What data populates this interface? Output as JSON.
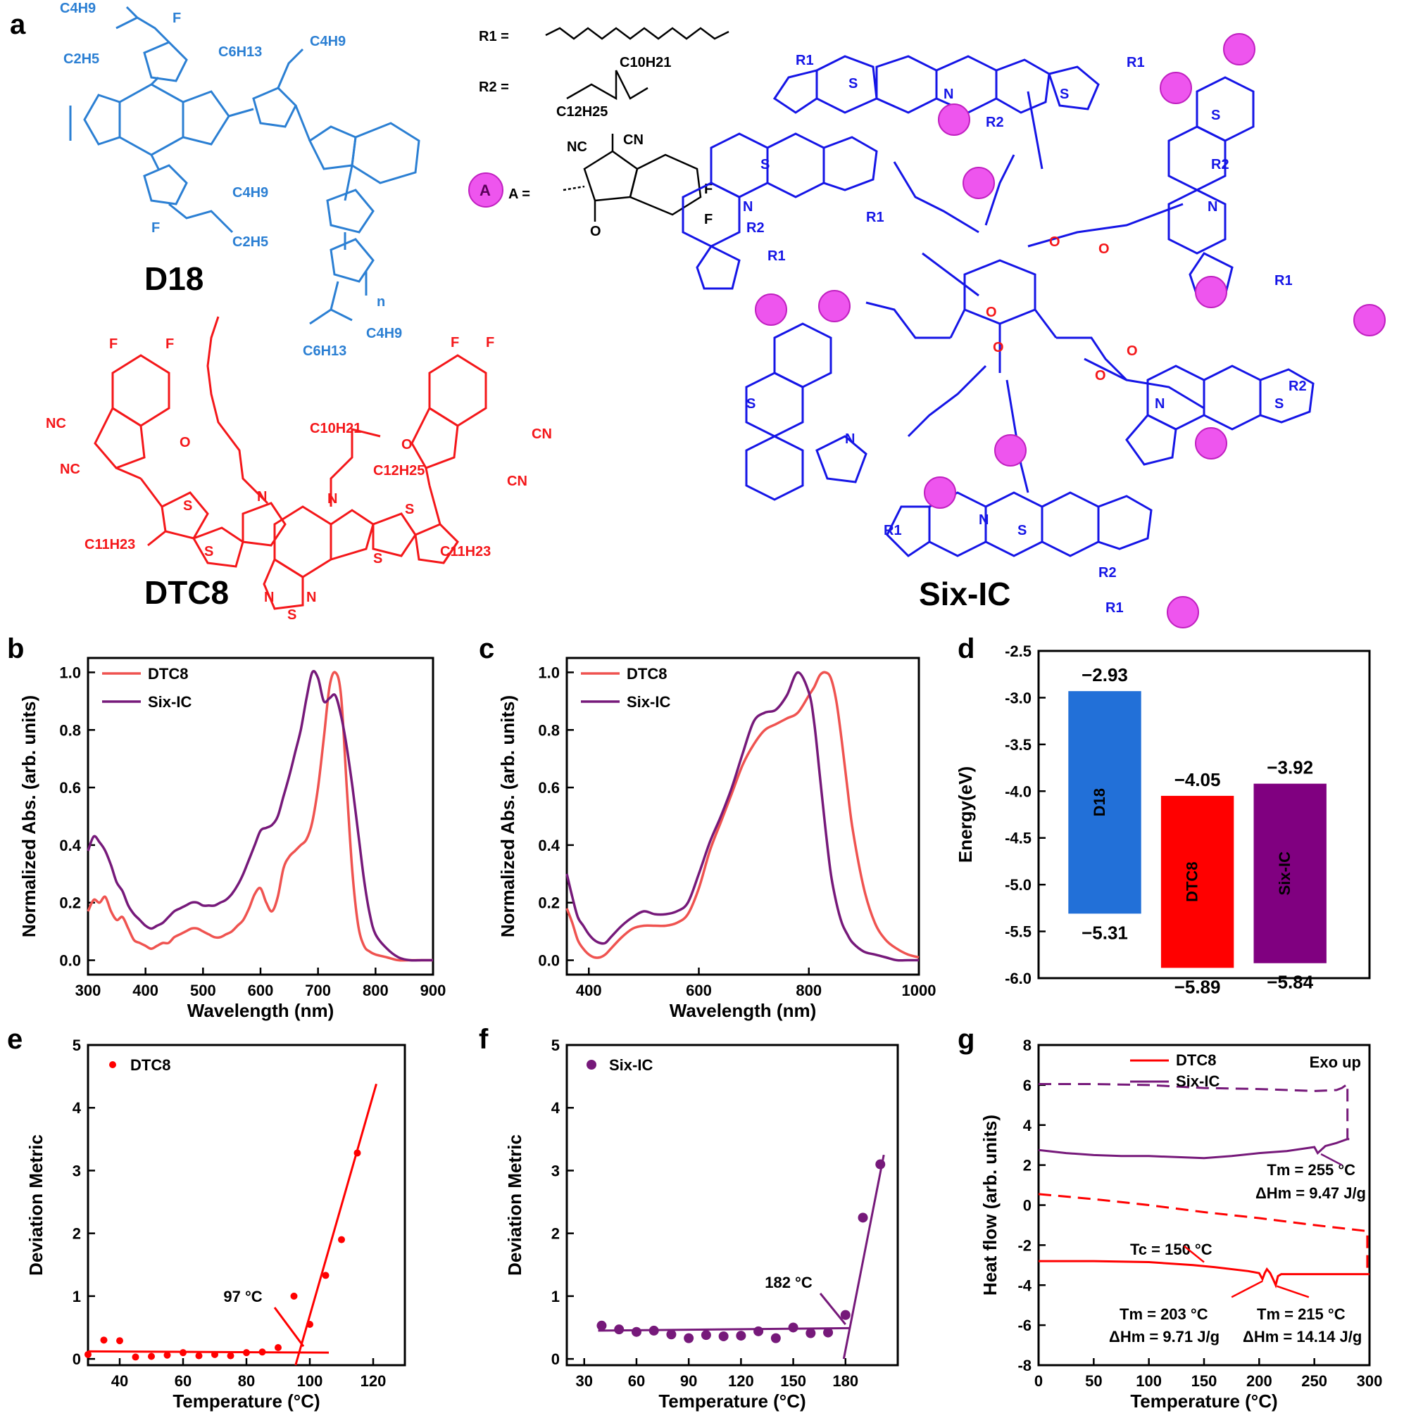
{
  "panel_labels": [
    "a",
    "b",
    "c",
    "d",
    "e",
    "f",
    "g"
  ],
  "molecules": {
    "d18": "D18",
    "dtc8": "DTC8",
    "sixic": "Six-IC",
    "r1": "R1 =",
    "r2": "R2 =",
    "a_def": "A =",
    "a_symbol": "A",
    "d18_groups": [
      "C4H9",
      "C2H5",
      "F",
      "C6H13",
      "C4H9",
      "F",
      "C4H9",
      "C2H5",
      "C6H13",
      "C4H9",
      "n"
    ],
    "dtc8_groups": [
      "F",
      "F",
      "F",
      "F",
      "NC",
      "NC",
      "CN",
      "CN",
      "O",
      "O",
      "C10H21",
      "C12H25",
      "C11H23",
      "C11H23",
      "N",
      "N",
      "S",
      "S",
      "S",
      "S",
      "N",
      "N",
      "S"
    ],
    "r2_groups": [
      "C10H21",
      "C12H25"
    ],
    "a_groups": [
      "NC",
      "CN",
      "F",
      "F",
      "O"
    ],
    "sixic_groups": [
      "R1",
      "R2",
      "S",
      "N",
      "O"
    ]
  },
  "colors": {
    "d18": "#2b7fd3",
    "dtc8": "#f4171a",
    "sixic_core": "#1515e6",
    "sixic_end": "#e040e0",
    "red_line": "#ef5350",
    "purple_line": "#76197a",
    "d18_bar": "#2270d8",
    "dtc8_bar": "#ff0000",
    "sixic_bar": "#800080"
  },
  "chart_data": [
    {
      "id": "b",
      "type": "line",
      "xlabel": "Wavelength (nm)",
      "ylabel": "Normalized Abs. (arb. units)",
      "xlim": [
        300,
        900
      ],
      "ylim": [
        -0.05,
        1.05
      ],
      "xticks": [
        300,
        400,
        500,
        600,
        700,
        800,
        900
      ],
      "yticks": [
        0.0,
        0.2,
        0.4,
        0.6,
        0.8,
        1.0
      ],
      "series": [
        {
          "name": "DTC8",
          "x": [
            300,
            310,
            320,
            330,
            340,
            350,
            360,
            370,
            380,
            390,
            400,
            410,
            420,
            430,
            440,
            450,
            460,
            470,
            480,
            490,
            500,
            510,
            520,
            530,
            540,
            550,
            560,
            570,
            580,
            590,
            600,
            610,
            620,
            630,
            640,
            650,
            660,
            670,
            680,
            690,
            700,
            710,
            720,
            730,
            740,
            750,
            760,
            770,
            780,
            790,
            800,
            820,
            840,
            860,
            880,
            900
          ],
          "y": [
            0.17,
            0.21,
            0.2,
            0.22,
            0.17,
            0.14,
            0.15,
            0.11,
            0.07,
            0.06,
            0.05,
            0.04,
            0.05,
            0.06,
            0.06,
            0.08,
            0.09,
            0.1,
            0.11,
            0.11,
            0.1,
            0.09,
            0.08,
            0.08,
            0.09,
            0.1,
            0.12,
            0.14,
            0.18,
            0.23,
            0.25,
            0.2,
            0.17,
            0.22,
            0.32,
            0.36,
            0.38,
            0.4,
            0.42,
            0.48,
            0.6,
            0.77,
            0.95,
            1.0,
            0.92,
            0.6,
            0.3,
            0.12,
            0.05,
            0.03,
            0.02,
            0.01,
            0.0,
            0.0,
            0.0,
            0.0
          ]
        },
        {
          "name": "Six-IC",
          "x": [
            300,
            310,
            320,
            330,
            340,
            350,
            360,
            370,
            380,
            390,
            400,
            410,
            420,
            430,
            440,
            450,
            460,
            470,
            480,
            490,
            500,
            510,
            520,
            530,
            540,
            550,
            560,
            570,
            580,
            590,
            600,
            610,
            620,
            630,
            640,
            650,
            660,
            670,
            680,
            690,
            700,
            710,
            720,
            730,
            740,
            750,
            760,
            770,
            780,
            790,
            800,
            820,
            840,
            860,
            880,
            900
          ],
          "y": [
            0.38,
            0.43,
            0.41,
            0.38,
            0.33,
            0.27,
            0.24,
            0.19,
            0.16,
            0.14,
            0.12,
            0.11,
            0.12,
            0.13,
            0.15,
            0.17,
            0.18,
            0.19,
            0.2,
            0.2,
            0.19,
            0.19,
            0.19,
            0.2,
            0.21,
            0.23,
            0.26,
            0.3,
            0.35,
            0.4,
            0.45,
            0.46,
            0.47,
            0.5,
            0.57,
            0.64,
            0.72,
            0.8,
            0.91,
            1.0,
            0.98,
            0.9,
            0.91,
            0.92,
            0.85,
            0.74,
            0.6,
            0.44,
            0.28,
            0.16,
            0.09,
            0.04,
            0.01,
            0.0,
            0.0,
            0.0
          ]
        }
      ]
    },
    {
      "id": "c",
      "type": "line",
      "xlabel": "Wavelength (nm)",
      "ylabel": "Normalized Abs. (arb. units)",
      "xlim": [
        360,
        1000
      ],
      "ylim": [
        -0.05,
        1.05
      ],
      "xticks": [
        400,
        600,
        800,
        1000
      ],
      "yticks": [
        0.0,
        0.2,
        0.4,
        0.6,
        0.8,
        1.0
      ],
      "series": [
        {
          "name": "DTC8",
          "x": [
            360,
            370,
            380,
            390,
            400,
            410,
            420,
            430,
            440,
            460,
            480,
            500,
            520,
            540,
            560,
            580,
            600,
            620,
            640,
            660,
            680,
            700,
            720,
            740,
            760,
            780,
            800,
            810,
            820,
            830,
            840,
            850,
            860,
            870,
            880,
            900,
            920,
            940,
            960,
            980,
            1000
          ],
          "y": [
            0.18,
            0.13,
            0.07,
            0.04,
            0.02,
            0.01,
            0.01,
            0.02,
            0.04,
            0.08,
            0.11,
            0.12,
            0.12,
            0.12,
            0.13,
            0.16,
            0.25,
            0.38,
            0.48,
            0.58,
            0.68,
            0.75,
            0.8,
            0.82,
            0.84,
            0.86,
            0.92,
            0.95,
            0.99,
            1.0,
            0.98,
            0.9,
            0.76,
            0.6,
            0.45,
            0.25,
            0.13,
            0.07,
            0.04,
            0.02,
            0.01
          ]
        },
        {
          "name": "Six-IC",
          "x": [
            360,
            370,
            380,
            390,
            400,
            410,
            420,
            430,
            440,
            460,
            480,
            500,
            520,
            540,
            560,
            580,
            600,
            620,
            640,
            660,
            680,
            700,
            720,
            740,
            760,
            780,
            800,
            810,
            820,
            830,
            840,
            850,
            860,
            870,
            880,
            900,
            920,
            940,
            960,
            980,
            1000
          ],
          "y": [
            0.3,
            0.22,
            0.15,
            0.12,
            0.09,
            0.07,
            0.06,
            0.06,
            0.08,
            0.12,
            0.15,
            0.17,
            0.16,
            0.16,
            0.17,
            0.2,
            0.3,
            0.41,
            0.5,
            0.6,
            0.72,
            0.83,
            0.86,
            0.87,
            0.92,
            1.0,
            0.93,
            0.82,
            0.64,
            0.46,
            0.3,
            0.2,
            0.13,
            0.09,
            0.06,
            0.03,
            0.02,
            0.01,
            0.0,
            0.0,
            0.0
          ]
        }
      ]
    },
    {
      "id": "d",
      "type": "bar",
      "ylabel": "Energy(eV)",
      "ylim": [
        -6.0,
        -2.5
      ],
      "yticks": [
        -6.0,
        -5.5,
        -5.0,
        -4.5,
        -4.0,
        -3.5,
        -3.0,
        -2.5
      ],
      "bars": [
        {
          "name": "D18",
          "lumo": -2.93,
          "homo": -5.31,
          "lumo_label": "−2.93",
          "homo_label": "−5.31"
        },
        {
          "name": "DTC8",
          "lumo": -4.05,
          "homo": -5.89,
          "lumo_label": "−4.05",
          "homo_label": "−5.89"
        },
        {
          "name": "Six-IC",
          "lumo": -3.92,
          "homo": -5.84,
          "lumo_label": "−3.92",
          "homo_label": "−5.84"
        }
      ]
    },
    {
      "id": "e",
      "type": "scatter",
      "xlabel": "Temperature (°C)",
      "ylabel": "Deviation Metric",
      "xlim": [
        30,
        130
      ],
      "ylim": [
        -0.1,
        5
      ],
      "xticks": [
        40,
        60,
        80,
        100,
        120
      ],
      "yticks": [
        0,
        1,
        2,
        3,
        4,
        5
      ],
      "series": [
        {
          "name": "DTC8",
          "x": [
            30,
            35,
            40,
            45,
            50,
            55,
            60,
            65,
            70,
            75,
            80,
            85,
            90,
            95,
            100,
            105,
            110,
            115
          ],
          "y": [
            0.07,
            0.3,
            0.29,
            0.03,
            0.04,
            0.06,
            0.1,
            0.05,
            0.07,
            0.05,
            0.1,
            0.11,
            0.18,
            1.0,
            0.55,
            1.33,
            1.9,
            3.28
          ]
        }
      ],
      "fit_lines": [
        {
          "x": [
            30,
            106
          ],
          "y": [
            0.12,
            0.1
          ]
        },
        {
          "x": [
            95.5,
            121
          ],
          "y": [
            -0.1,
            4.38
          ]
        }
      ],
      "annotation": "97 °C"
    },
    {
      "id": "f",
      "type": "scatter",
      "xlabel": "Temperature (°C)",
      "ylabel": "Deviation Metric",
      "xlim": [
        20,
        210
      ],
      "ylim": [
        -0.1,
        5
      ],
      "xticks": [
        30,
        60,
        90,
        120,
        150,
        180
      ],
      "yticks": [
        0,
        1,
        2,
        3,
        4,
        5
      ],
      "series": [
        {
          "name": "Six-IC",
          "x": [
            40,
            50,
            60,
            70,
            80,
            90,
            100,
            110,
            120,
            130,
            140,
            150,
            160,
            170,
            180,
            190,
            200
          ],
          "y": [
            0.53,
            0.47,
            0.43,
            0.45,
            0.39,
            0.33,
            0.38,
            0.36,
            0.37,
            0.44,
            0.33,
            0.5,
            0.41,
            0.42,
            0.7,
            2.25,
            3.1
          ]
        }
      ],
      "fit_lines": [
        {
          "x": [
            38,
            182
          ],
          "y": [
            0.45,
            0.49
          ]
        },
        {
          "x": [
            179,
            202
          ],
          "y": [
            0.0,
            3.25
          ]
        }
      ],
      "annotation": "182 °C"
    },
    {
      "id": "g",
      "type": "line",
      "xlabel": "Temperature (°C)",
      "ylabel": "Heat flow (arb. units)",
      "xlim": [
        0,
        300
      ],
      "ylim": [
        -8,
        8
      ],
      "xticks": [
        0,
        50,
        100,
        150,
        200,
        250,
        300
      ],
      "yticks": [
        -8,
        -6,
        -4,
        -2,
        0,
        2,
        4,
        6,
        8
      ],
      "legend": [
        "DTC8",
        "Six-IC"
      ],
      "corner_note": "Exo up",
      "series": [
        {
          "name": "Six-IC heating",
          "style": "solid",
          "x": [
            0,
            25,
            50,
            75,
            100,
            125,
            150,
            175,
            200,
            225,
            250,
            253,
            256,
            260,
            270,
            280
          ],
          "y": [
            2.75,
            2.6,
            2.5,
            2.45,
            2.45,
            2.4,
            2.35,
            2.45,
            2.6,
            2.7,
            2.9,
            2.6,
            2.75,
            2.95,
            3.1,
            3.3
          ]
        },
        {
          "name": "Six-IC cooling",
          "style": "dash",
          "x": [
            0,
            50,
            100,
            150,
            200,
            250,
            270,
            275,
            280,
            280,
            282
          ],
          "y": [
            6.05,
            6.05,
            6.0,
            5.85,
            5.8,
            5.7,
            5.75,
            5.85,
            6.05,
            3.3,
            3.3
          ]
        },
        {
          "name": "DTC8 heating",
          "style": "solid",
          "x": [
            0,
            50,
            100,
            140,
            150,
            160,
            190,
            200,
            203,
            205,
            207,
            210,
            213,
            215,
            217,
            220,
            240,
            270,
            300
          ],
          "y": [
            -2.8,
            -2.8,
            -2.85,
            -3.0,
            -3.05,
            -3.1,
            -3.3,
            -3.4,
            -3.7,
            -3.4,
            -3.2,
            -3.4,
            -3.75,
            -4.0,
            -3.55,
            -3.45,
            -3.45,
            -3.45,
            -3.45
          ]
        },
        {
          "name": "DTC8 cooling",
          "style": "dash",
          "x": [
            0,
            50,
            100,
            150,
            200,
            250,
            298,
            298
          ],
          "y": [
            0.55,
            0.3,
            0.0,
            -0.35,
            -0.65,
            -1.0,
            -1.3,
            -3.45
          ]
        }
      ],
      "annotations": {
        "tc": "Tc = 150 °C",
        "tm1": "Tm = 203 °C",
        "dh1": "ΔHm = 9.71 J/g",
        "tm2": "Tm = 215 °C",
        "dh2": "ΔHm = 14.14 J/g",
        "tm3": "Tm = 255 °C",
        "dh3": "ΔHm = 9.47 J/g"
      }
    }
  ]
}
